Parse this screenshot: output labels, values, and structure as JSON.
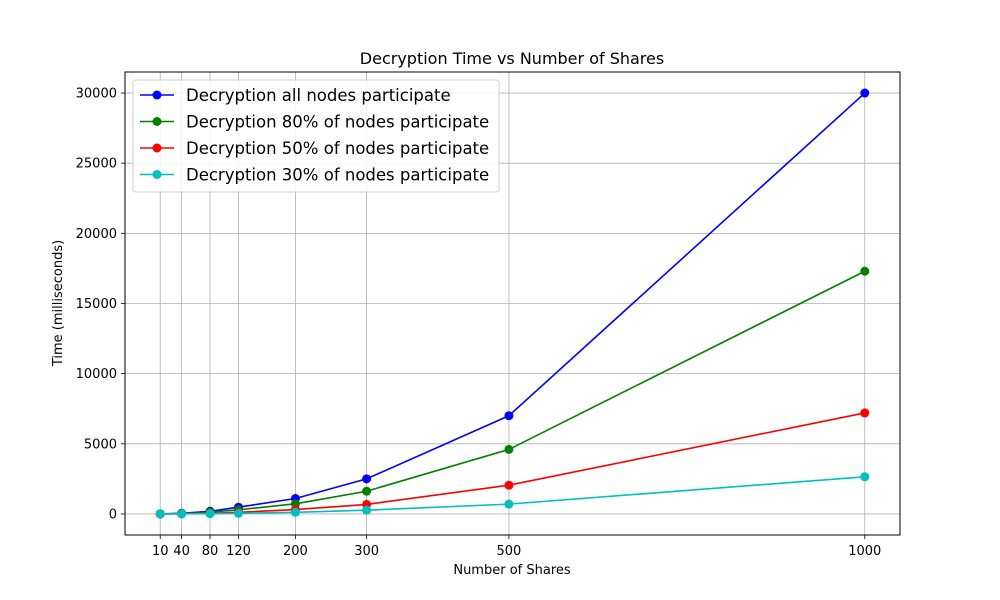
{
  "chart_data": {
    "type": "line",
    "title": "Decryption Time vs Number of Shares",
    "xlabel": "Number of Shares",
    "ylabel": "Time (milliseconds)",
    "x": [
      10,
      40,
      80,
      120,
      200,
      300,
      500,
      1000
    ],
    "x_ticks": [
      10,
      40,
      80,
      120,
      200,
      300,
      500,
      1000
    ],
    "y_ticks": [
      0,
      5000,
      10000,
      15000,
      20000,
      25000,
      30000
    ],
    "xlim": [
      -39.5,
      1049.5
    ],
    "ylim": [
      -1500,
      31500
    ],
    "grid": true,
    "legend_position": "top-left",
    "series": [
      {
        "name": "Decryption all nodes participate",
        "color": "#0000ff",
        "values": [
          3,
          48,
          190,
          480,
          1100,
          2500,
          7000,
          30000
        ]
      },
      {
        "name": "Decryption 80% of nodes participate",
        "color": "#008000",
        "values": [
          2,
          31,
          122,
          300,
          720,
          1620,
          4600,
          17300
        ]
      },
      {
        "name": "Decryption 50% of nodes participate",
        "color": "#ff0000",
        "values": [
          1,
          12,
          50,
          120,
          310,
          680,
          2050,
          7200
        ]
      },
      {
        "name": "Decryption 30% of nodes participate",
        "color": "#00bfbf",
        "values": [
          0,
          5,
          20,
          45,
          120,
          270,
          700,
          2650
        ]
      }
    ]
  }
}
